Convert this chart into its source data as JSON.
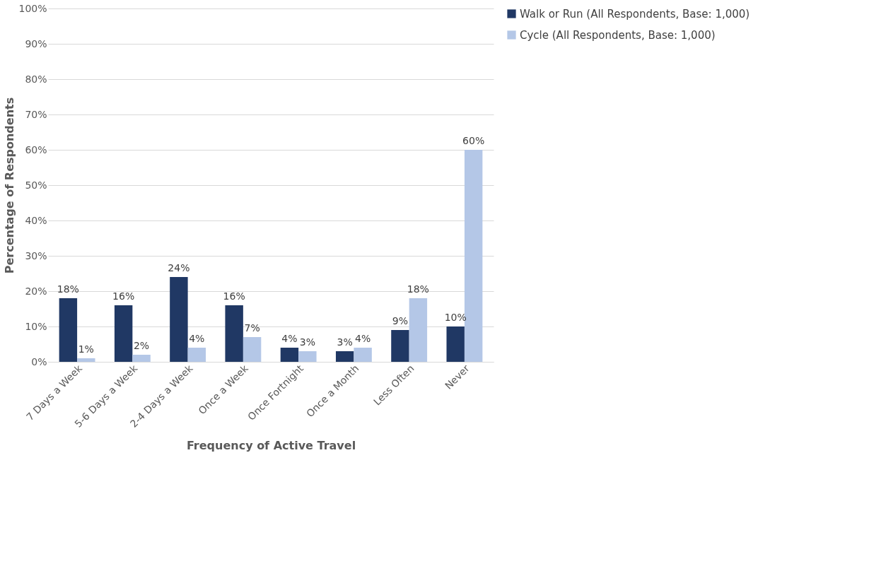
{
  "chart_data": {
    "type": "bar",
    "xlabel": "Frequency of Active Travel",
    "ylabel": "Percentage of Respondents",
    "categories": [
      "7 Days a Week",
      "5-6 Days a Week",
      "2-4 Days a Week",
      "Once a Week",
      "Once Fortnight",
      "Once a Month",
      "Less Often",
      "Never"
    ],
    "series": [
      {
        "name": "Walk or Run (All Respondents, Base: 1,000)",
        "color": "#203864",
        "values": [
          18,
          16,
          24,
          16,
          4,
          3,
          9,
          10
        ],
        "value_labels": [
          "18%",
          "16%",
          "24%",
          "16%",
          "4%",
          "3%",
          "9%",
          "10%"
        ]
      },
      {
        "name": "Cycle (All Respondents, Base: 1,000)",
        "color": "#b4c7e7",
        "values": [
          1,
          2,
          4,
          7,
          3,
          4,
          18,
          60
        ],
        "value_labels": [
          "1%",
          "2%",
          "4%",
          "7%",
          "3%",
          "4%",
          "18%",
          "60%"
        ]
      }
    ],
    "ylim": [
      0,
      100
    ],
    "yticks": [
      {
        "value": 0,
        "label": "0%"
      },
      {
        "value": 10,
        "label": "10%"
      },
      {
        "value": 20,
        "label": "20%"
      },
      {
        "value": 30,
        "label": "30%"
      },
      {
        "value": 40,
        "label": "40%"
      },
      {
        "value": 50,
        "label": "50%"
      },
      {
        "value": 60,
        "label": "60%"
      },
      {
        "value": 70,
        "label": "70%"
      },
      {
        "value": 80,
        "label": "80%"
      },
      {
        "value": 90,
        "label": "90%"
      },
      {
        "value": 100,
        "label": "100%"
      }
    ],
    "grid": "y",
    "legend": "right"
  }
}
